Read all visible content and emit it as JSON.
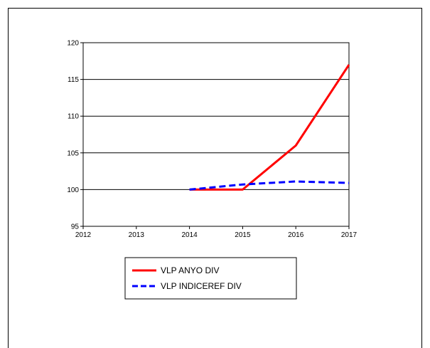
{
  "chart_data": {
    "type": "line",
    "x": [
      2012,
      2013,
      2014,
      2015,
      2016,
      2017
    ],
    "xlim": [
      2012,
      2017
    ],
    "ylim": [
      95,
      120
    ],
    "yticks": [
      95,
      100,
      105,
      110,
      115,
      120
    ],
    "grid": "horizontal",
    "legend_position": "bottom-left",
    "series": [
      {
        "name": "VLP ANYO DIV",
        "color": "#ff0000",
        "dash": "solid",
        "x": [
          2014,
          2015,
          2016,
          2017
        ],
        "values": [
          100.0,
          100.0,
          106.0,
          117.0
        ]
      },
      {
        "name": "VLP INDICEREF DIV",
        "color": "#0000ff",
        "dash": "dashed",
        "x": [
          2014,
          2015,
          2016,
          2017
        ],
        "values": [
          100.0,
          100.7,
          101.1,
          100.9
        ]
      }
    ]
  }
}
